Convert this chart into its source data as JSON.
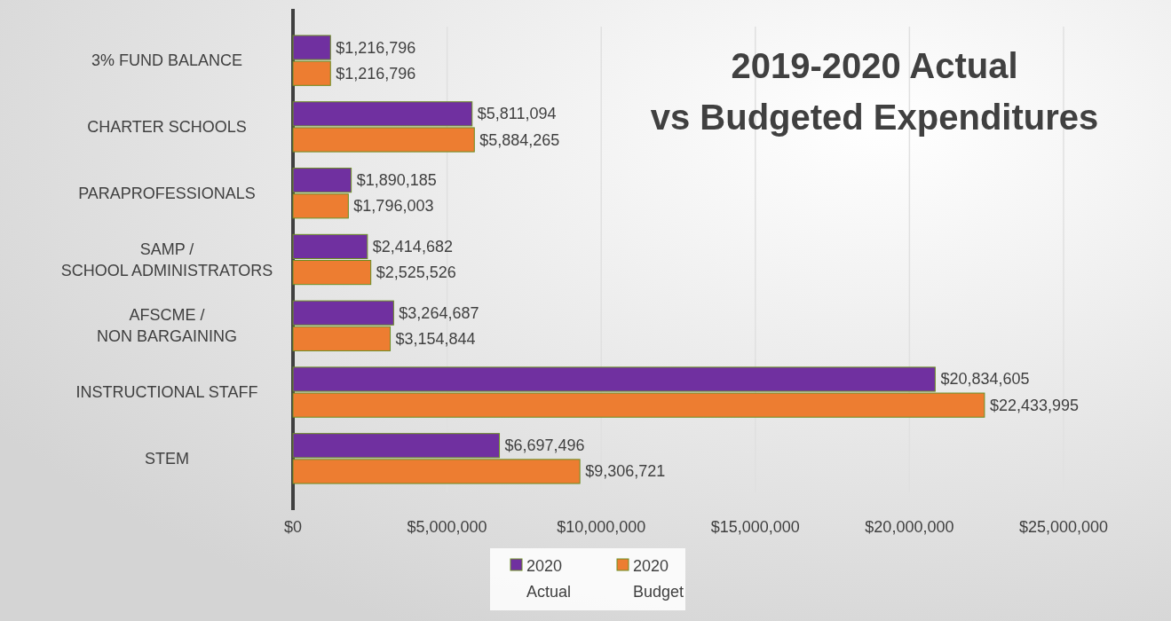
{
  "chart_data": {
    "type": "bar",
    "orientation": "horizontal",
    "title": "2019-2020 Actual vs Budgeted Expenditures",
    "categories": [
      "3% FUND BALANCE",
      "CHARTER SCHOOLS",
      "PARAPROFESSIONALS",
      "SAMP /\nSCHOOL ADMINISTRATORS",
      "AFSCME /\nNON BARGAINING",
      "INSTRUCTIONAL STAFF",
      "STEM"
    ],
    "series": [
      {
        "name": "2020 Actual",
        "color": "#7030a0",
        "values": [
          1216796,
          5811094,
          1890185,
          2414682,
          3264687,
          20834605,
          6697496
        ],
        "value_labels": [
          "$1,216,796",
          "$5,811,094",
          "$1,890,185",
          "$2,414,682",
          "$3,264,687",
          "$20,834,605",
          "$6,697,496"
        ]
      },
      {
        "name": "2020 Budget",
        "color": "#ed7d31",
        "values": [
          1216796,
          5884265,
          1796003,
          2525526,
          3154844,
          22433995,
          9306721
        ],
        "value_labels": [
          "$1,216,796",
          "$5,884,265",
          "$1,796,003",
          "$2,525,526",
          "$3,154,844",
          "$22,433,995",
          "$9,306,721"
        ]
      }
    ],
    "xlim": [
      0,
      25000000
    ],
    "xticks": [
      {
        "value": 0,
        "label": "$0"
      },
      {
        "value": 5000000,
        "label": "$5,000,000"
      },
      {
        "value": 10000000,
        "label": "$10,000,000"
      },
      {
        "value": 15000000,
        "label": "$15,000,000"
      },
      {
        "value": 20000000,
        "label": "$20,000,000"
      },
      {
        "value": 25000000,
        "label": "$25,000,000"
      }
    ],
    "grid": "x",
    "legend": "bottom"
  }
}
